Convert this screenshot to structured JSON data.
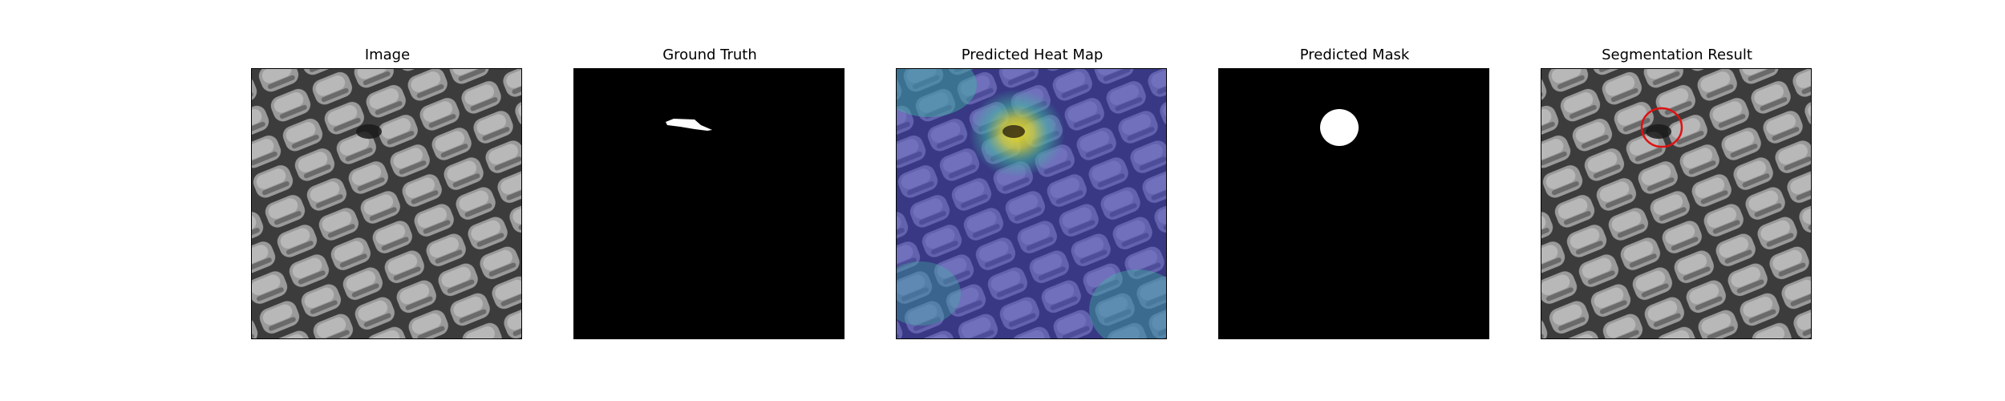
{
  "panels": [
    {
      "title": "Image",
      "kind": "texture"
    },
    {
      "title": "Ground Truth",
      "kind": "ground-truth-mask"
    },
    {
      "title": "Predicted Heat Map",
      "kind": "heatmap-overlay"
    },
    {
      "title": "Predicted Mask",
      "kind": "predicted-mask"
    },
    {
      "title": "Segmentation Result",
      "kind": "texture-with-circle"
    }
  ],
  "colors": {
    "background": "#ffffff",
    "mask_bg": "#000000",
    "mask_fg": "#ffffff",
    "texture_light": "#a8a8a8",
    "texture_dark": "#3a3a3a",
    "heat_low": "#3b3bc8",
    "heat_mid": "#2fa8a0",
    "heat_high": "#e8e030",
    "circle": "#e01010"
  }
}
